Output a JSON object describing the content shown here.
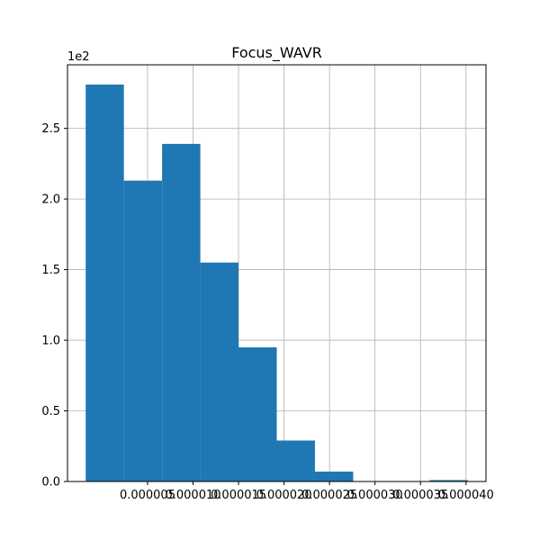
{
  "chart_data": {
    "type": "bar",
    "title": "Focus_WAVR",
    "xlabel": "",
    "ylabel": "",
    "y_offset_label": "1e2",
    "bin_edges": [
      -1.8e-06,
      2.4e-06,
      6.6e-06,
      1.08e-05,
      1.5e-05,
      1.92e-05,
      2.34e-05,
      2.76e-05,
      3.18e-05,
      3.6e-05,
      4.02e-05
    ],
    "values": [
      281,
      213,
      239,
      155,
      95,
      29,
      7,
      0,
      0,
      1
    ],
    "xlim": [
      -3.8e-06,
      4.22e-05
    ],
    "ylim": [
      0,
      295
    ],
    "x_ticks": [
      {
        "value": 5e-06,
        "label": "0.000005"
      },
      {
        "value": 1e-05,
        "label": "0.000010"
      },
      {
        "value": 1.5e-05,
        "label": "0.000015"
      },
      {
        "value": 2e-05,
        "label": "0.000020"
      },
      {
        "value": 2.5e-05,
        "label": "0.000025"
      },
      {
        "value": 3e-05,
        "label": "0.000030"
      },
      {
        "value": 3.5e-05,
        "label": "0.000035"
      },
      {
        "value": 4e-05,
        "label": "0.000040"
      }
    ],
    "y_ticks": [
      {
        "value": 0,
        "label": "0.0"
      },
      {
        "value": 50,
        "label": "0.5"
      },
      {
        "value": 100,
        "label": "1.0"
      },
      {
        "value": 150,
        "label": "1.5"
      },
      {
        "value": 200,
        "label": "2.0"
      },
      {
        "value": 250,
        "label": "2.5"
      }
    ],
    "grid": true,
    "bar_color": "#1f77b4",
    "grid_color": "#b0b0b0"
  }
}
